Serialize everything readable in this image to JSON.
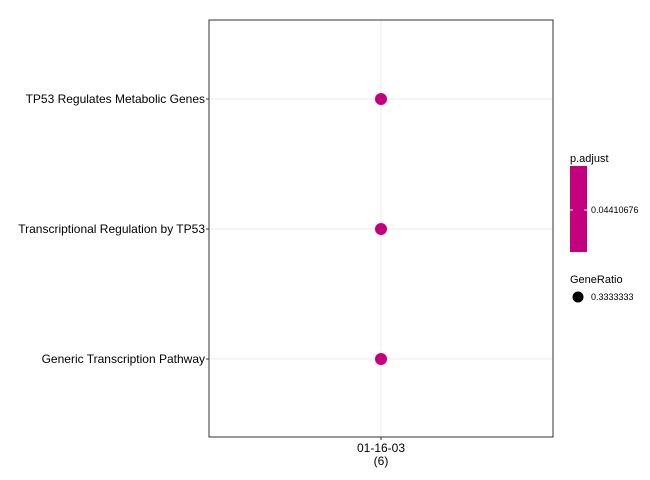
{
  "chart_data": {
    "type": "scatter",
    "title": "",
    "xlabel": "",
    "ylabel": "",
    "grid": true,
    "legend_placement": "right",
    "x_categories": [
      {
        "line1": "01-16-03",
        "line2": "(6)"
      }
    ],
    "y_categories": [
      "TP53 Regulates Metabolic Genes",
      "Transcriptional Regulation by TP53",
      "Generic Transcription Pathway"
    ],
    "points": [
      {
        "x": "01-16-03",
        "y": "TP53 Regulates Metabolic Genes",
        "p_adjust": 0.04410676,
        "gene_ratio": 0.3333333
      },
      {
        "x": "01-16-03",
        "y": "Transcriptional Regulation by TP53",
        "p_adjust": 0.04410676,
        "gene_ratio": 0.3333333
      },
      {
        "x": "01-16-03",
        "y": "Generic Transcription Pathway",
        "p_adjust": 0.04410676,
        "gene_ratio": 0.3333333
      }
    ],
    "legend": {
      "color": {
        "title": "p.adjust",
        "label": "0.04410676",
        "color": "#c5007f"
      },
      "size": {
        "title": "GeneRatio",
        "label": "0.3333333",
        "color": "#000000"
      }
    },
    "colors": {
      "point": "#c5007f",
      "grid": "#ebebeb",
      "axis": "#333333"
    }
  }
}
